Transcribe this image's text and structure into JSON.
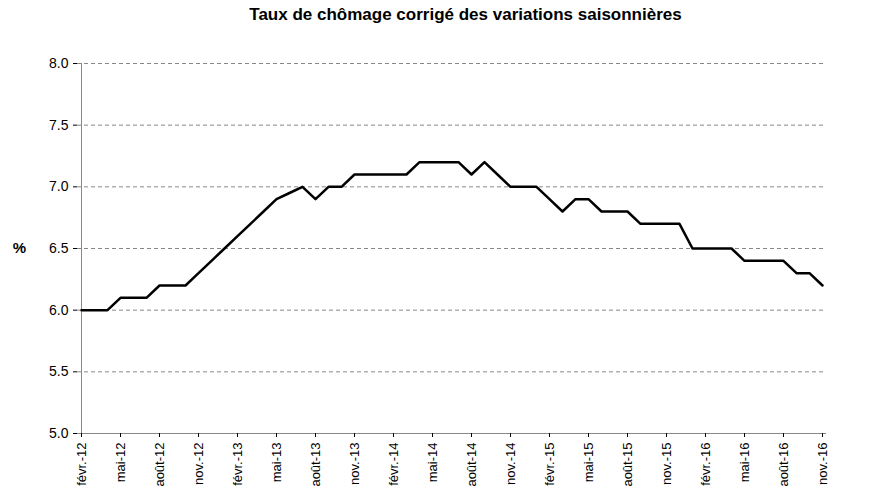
{
  "chart_data": {
    "type": "line",
    "title": "Taux de chômage corrigé des variations saisonnières",
    "y_label": "%",
    "categories": [
      "févr.-12",
      null,
      null,
      "mai-12",
      null,
      null,
      "août-12",
      null,
      null,
      "nov.-12",
      null,
      null,
      "févr.-13",
      null,
      null,
      "mai-13",
      null,
      null,
      "août-13",
      null,
      null,
      "nov.-13",
      null,
      null,
      "févr.-14",
      null,
      null,
      "mai-14",
      null,
      null,
      "août-14",
      null,
      null,
      "nov.-14",
      null,
      null,
      "févr.-15",
      null,
      null,
      "mai-15",
      null,
      null,
      "août-15",
      null,
      null,
      "nov.-15",
      null,
      null,
      "févr.-16",
      null,
      null,
      "mai-16",
      null,
      null,
      "août-16",
      null,
      null,
      "nov.-16"
    ],
    "values": [
      6.0,
      6.0,
      6.0,
      6.1,
      6.1,
      6.1,
      6.2,
      6.2,
      6.2,
      6.3,
      6.4,
      6.5,
      6.6,
      6.7,
      6.8,
      6.9,
      6.95,
      7.0,
      6.9,
      7.0,
      7.0,
      7.1,
      7.1,
      7.1,
      7.1,
      7.1,
      7.2,
      7.2,
      7.2,
      7.2,
      7.1,
      7.2,
      7.1,
      7.0,
      7.0,
      7.0,
      6.9,
      6.8,
      6.9,
      6.9,
      6.8,
      6.8,
      6.8,
      6.7,
      6.7,
      6.7,
      6.7,
      6.5,
      6.5,
      6.5,
      6.5,
      6.4,
      6.4,
      6.4,
      6.4,
      6.3,
      6.3,
      6.2
    ],
    "color": "#000000",
    "ylim": [
      5,
      8
    ],
    "yticks": [
      {
        "value": 5,
        "label": "5.0"
      },
      {
        "value": 5.5,
        "label": "5.5"
      },
      {
        "value": 6,
        "label": "6.0"
      },
      {
        "value": 6.5,
        "label": "6.5"
      },
      {
        "value": 7,
        "label": "7.0"
      },
      {
        "value": 7.5,
        "label": "7.5"
      },
      {
        "value": 8,
        "label": "8.0"
      }
    ],
    "grid": true
  }
}
